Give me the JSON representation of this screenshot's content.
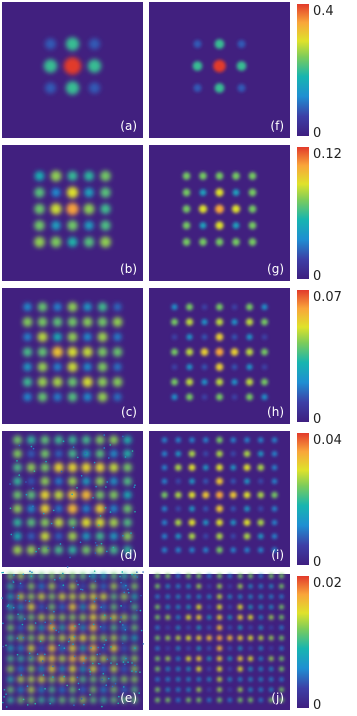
{
  "panels": [
    {
      "label": "(a)"
    },
    {
      "label": "(f)"
    },
    {
      "label": "(b)"
    },
    {
      "label": "(g)"
    },
    {
      "label": "(c)"
    },
    {
      "label": "(h)"
    },
    {
      "label": "(d)"
    },
    {
      "label": "(i)"
    },
    {
      "label": "(e)"
    },
    {
      "label": "(j)"
    }
  ],
  "colorbars": [
    {
      "max": "0.4",
      "min": "0"
    },
    {
      "max": "0.12",
      "min": "0"
    },
    {
      "max": "0.07",
      "min": "0"
    },
    {
      "max": "0.04",
      "min": "0"
    },
    {
      "max": "0.02",
      "min": "0"
    }
  ]
}
